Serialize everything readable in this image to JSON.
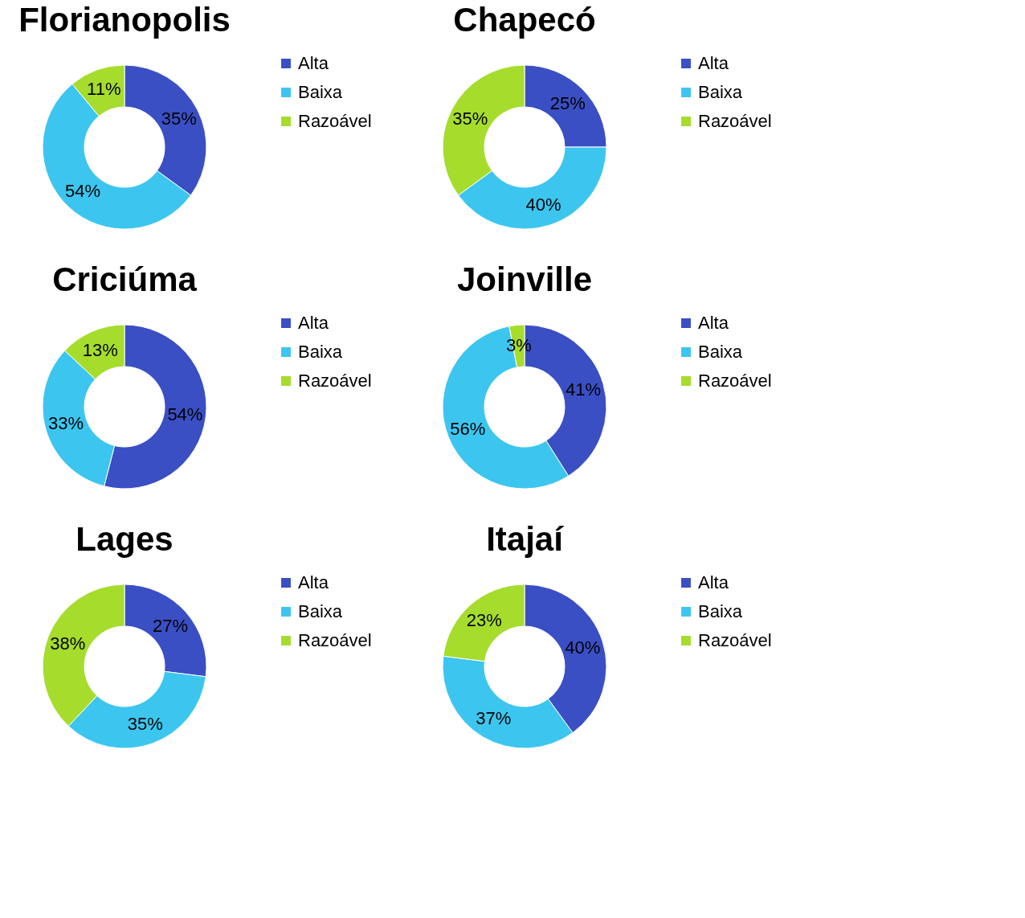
{
  "chart_data": [
    {
      "type": "donut",
      "title": "Florianopolis",
      "categories": [
        "Alta",
        "Baixa",
        "Razoável"
      ],
      "values": [
        35,
        54,
        11
      ],
      "value_labels": [
        "35%",
        "54%",
        "11%"
      ],
      "colors": [
        "#3a4fc4",
        "#3cc6ef",
        "#a6dc2c"
      ],
      "legend": "right"
    },
    {
      "type": "donut",
      "title": "Chapecó",
      "categories": [
        "Alta",
        "Baixa",
        "Razoável"
      ],
      "values": [
        25,
        40,
        35
      ],
      "value_labels": [
        "25%",
        "40%",
        "35%"
      ],
      "colors": [
        "#3a4fc4",
        "#3cc6ef",
        "#a6dc2c"
      ],
      "legend": "right"
    },
    {
      "type": "donut",
      "title": "Criciúma",
      "categories": [
        "Alta",
        "Baixa",
        "Razoável"
      ],
      "values": [
        54,
        33,
        13
      ],
      "value_labels": [
        "54%",
        "33%",
        "13%"
      ],
      "colors": [
        "#3a4fc4",
        "#3cc6ef",
        "#a6dc2c"
      ],
      "legend": "right"
    },
    {
      "type": "donut",
      "title": "Joinville",
      "categories": [
        "Alta",
        "Baixa",
        "Razoável"
      ],
      "values": [
        41,
        56,
        3
      ],
      "value_labels": [
        "41%",
        "56%",
        "3%"
      ],
      "colors": [
        "#3a4fc4",
        "#3cc6ef",
        "#a6dc2c"
      ],
      "legend": "right"
    },
    {
      "type": "donut",
      "title": "Lages",
      "categories": [
        "Alta",
        "Baixa",
        "Razoável"
      ],
      "values": [
        27,
        35,
        38
      ],
      "value_labels": [
        "27%",
        "35%",
        "38%"
      ],
      "colors": [
        "#3a4fc4",
        "#3cc6ef",
        "#a6dc2c"
      ],
      "legend": "right"
    },
    {
      "type": "donut",
      "title": "Itajaí",
      "categories": [
        "Alta",
        "Baixa",
        "Razoável"
      ],
      "values": [
        40,
        37,
        23
      ],
      "value_labels": [
        "40%",
        "37%",
        "23%"
      ],
      "colors": [
        "#3a4fc4",
        "#3cc6ef",
        "#a6dc2c"
      ],
      "legend": "right"
    }
  ]
}
